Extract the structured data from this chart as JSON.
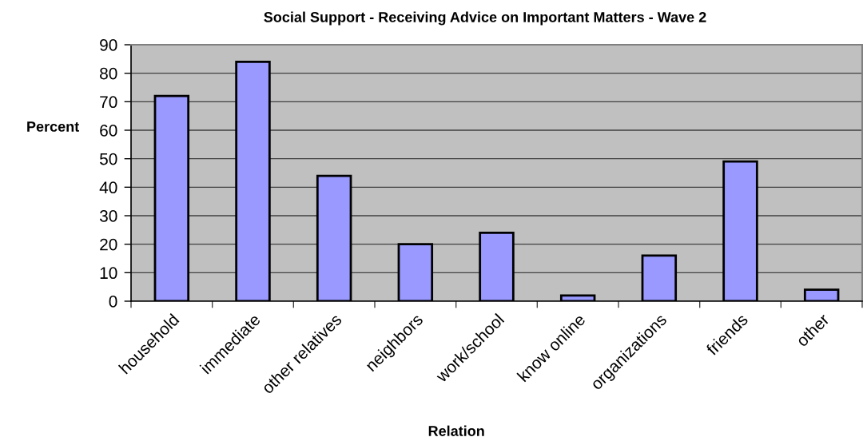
{
  "chart_data": {
    "type": "bar",
    "title": "Social Support - Receiving Advice on Important Matters - Wave 2",
    "xlabel": "Relation",
    "ylabel": "Percent",
    "categories": [
      "household",
      "immediate",
      "other relatives",
      "neighbors",
      "work/school",
      "know online",
      "organizations",
      "friends",
      "other"
    ],
    "values": [
      72,
      84,
      44,
      20,
      24,
      2,
      16,
      49,
      4
    ],
    "color": "#9999ff",
    "ylim": [
      0,
      90
    ],
    "yticks": [
      0,
      10,
      20,
      30,
      40,
      50,
      60,
      70,
      80,
      90
    ],
    "grid": "y",
    "legend": false
  }
}
